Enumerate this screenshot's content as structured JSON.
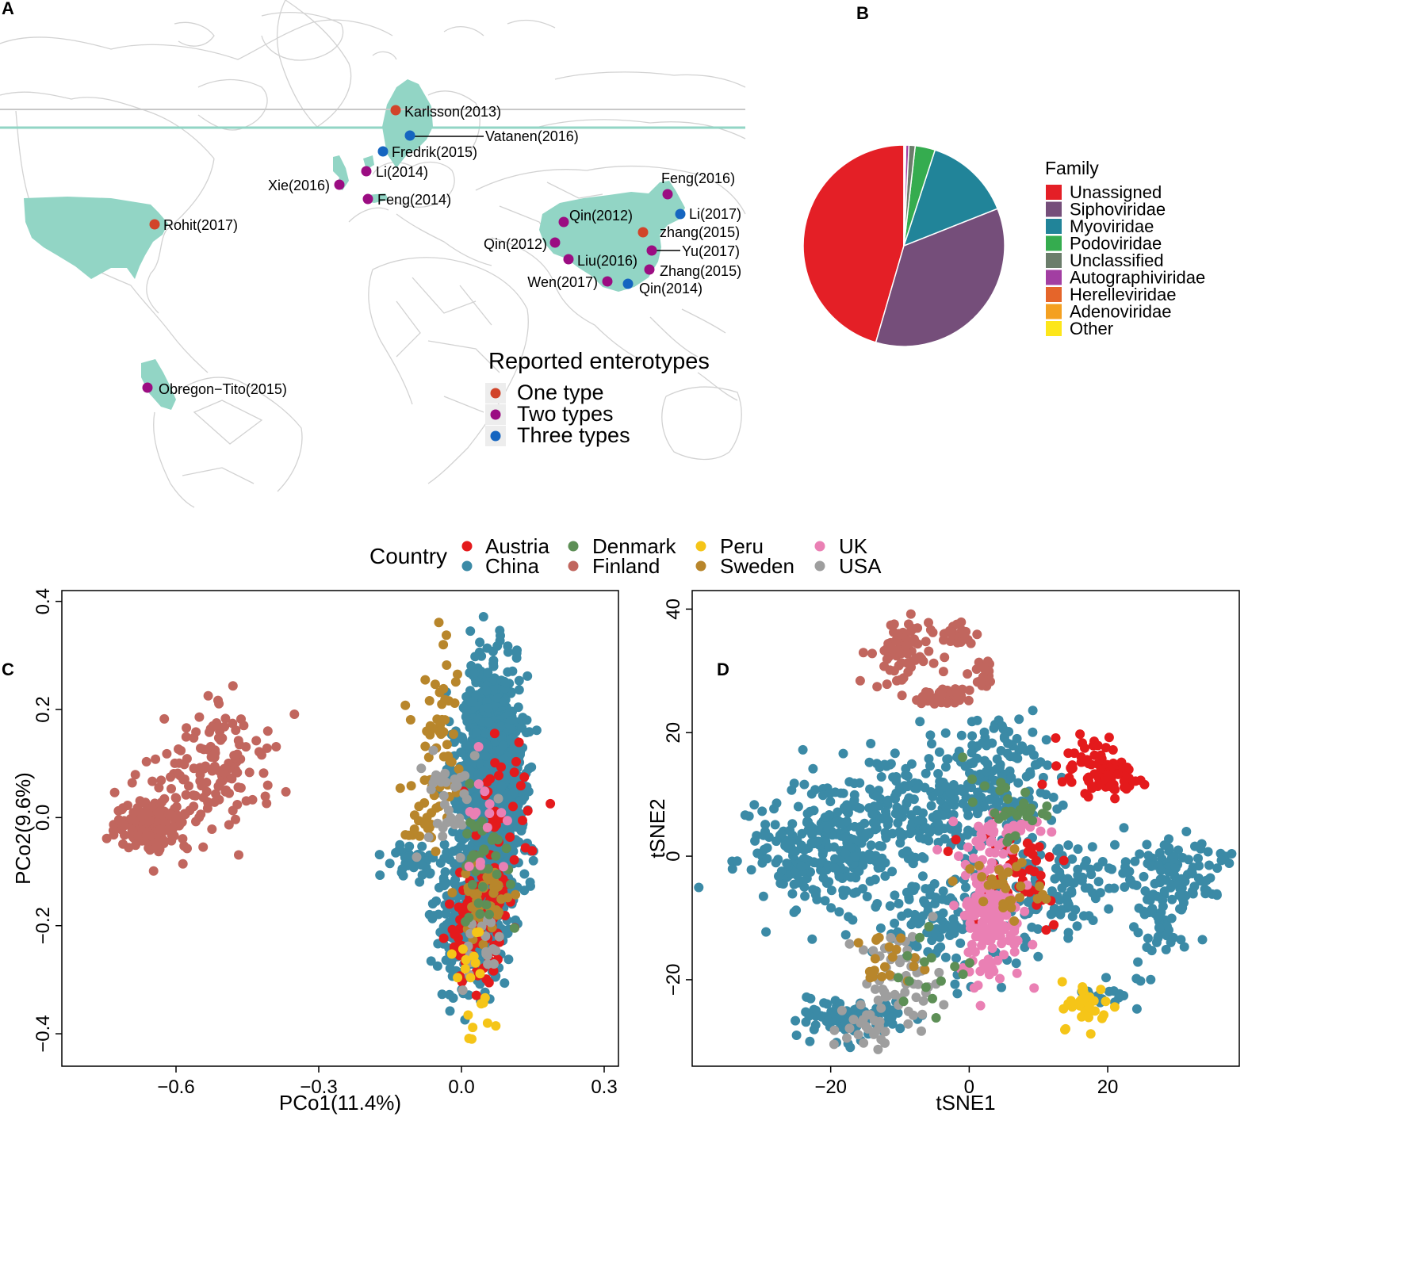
{
  "panels": {
    "a": "A",
    "b": "B",
    "c": "C",
    "d": "D"
  },
  "colors": {
    "one_type": "#d1442a",
    "two_types": "#9b0d82",
    "three_types": "#1565c0",
    "land": "#92d5c5",
    "map_line": "#cfcfcf",
    "austria": "#e41a1c",
    "china": "#3b8aa6",
    "denmark": "#5d8f56",
    "finland": "#c1665e",
    "peru": "#f5c518",
    "sweden": "#b8862b",
    "uk": "#ea80b4",
    "usa": "#9e9e9e"
  },
  "chart_data": [
    {
      "type": "map",
      "panel": "A",
      "legend_title": "Reported enterotypes",
      "legend": [
        {
          "label": "One type",
          "key": "one"
        },
        {
          "label": "Two types",
          "key": "two"
        },
        {
          "label": "Three types",
          "key": "three"
        }
      ],
      "studies": [
        {
          "label": "Karlsson(2013)",
          "type": "one"
        },
        {
          "label": "Vatanen(2016)",
          "type": "three"
        },
        {
          "label": "Fredrik(2015)",
          "type": "three"
        },
        {
          "label": "Li(2014)",
          "type": "two"
        },
        {
          "label": "Xie(2016)",
          "type": "two"
        },
        {
          "label": "Feng(2014)",
          "type": "two"
        },
        {
          "label": "Rohit(2017)",
          "type": "one"
        },
        {
          "label": "Obregon−Tito(2015)",
          "type": "two"
        },
        {
          "label": "Feng(2016)",
          "type": "two"
        },
        {
          "label": "Li(2017)",
          "type": "three"
        },
        {
          "label": "Qin(2012)",
          "type": "two"
        },
        {
          "label": "zhang(2015)",
          "type": "one"
        },
        {
          "label": "Qin(2012)",
          "type": "two"
        },
        {
          "label": "Yu(2017)",
          "type": "two"
        },
        {
          "label": "Liu(2016)",
          "type": "two"
        },
        {
          "label": "Zhang(2015)",
          "type": "two"
        },
        {
          "label": "Wen(2017)",
          "type": "two"
        },
        {
          "label": "Qin(2014)",
          "type": "three"
        }
      ]
    },
    {
      "type": "pie",
      "panel": "B",
      "legend_title": "Family",
      "slices": [
        {
          "label": "Unassigned",
          "value": 45.5,
          "color": "#e41f26"
        },
        {
          "label": "Siphoviridae",
          "value": 35.5,
          "color": "#754e7a"
        },
        {
          "label": "Myoviridae",
          "value": 14.0,
          "color": "#218499"
        },
        {
          "label": "Podoviridae",
          "value": 3.2,
          "color": "#35ac4f"
        },
        {
          "label": "Unclassified",
          "value": 1.0,
          "color": "#6b7d6b"
        },
        {
          "label": "Autographiviridae",
          "value": 0.5,
          "color": "#a23ea2"
        },
        {
          "label": "Herelleviridae",
          "value": 0.2,
          "color": "#e5652a"
        },
        {
          "label": "Adenoviridae",
          "value": 0.1,
          "color": "#f4a020"
        },
        {
          "label": "Other",
          "value": 0.0,
          "color": "#fde61a"
        }
      ]
    },
    {
      "type": "scatter",
      "panel": "C",
      "title": "",
      "xlabel": "PCo1(11.4%)",
      "ylabel": "PCo2(9.6%)",
      "xlim": [
        -0.84,
        0.33
      ],
      "ylim": [
        -0.46,
        0.42
      ],
      "xticks": [
        -0.6,
        -0.3,
        0.0,
        0.3
      ],
      "yticks": [
        -0.4,
        -0.2,
        0.0,
        0.2,
        0.4
      ],
      "xtick_labels": [
        "−0.6",
        "−0.3",
        "0.0",
        "0.3"
      ],
      "ytick_labels": [
        "−0.4",
        "−0.2",
        "0.0",
        "0.2",
        "0.4"
      ],
      "series": [
        {
          "name": "China",
          "color": "#3b8aa6",
          "clusters": [
            [
              0.06,
              0.06,
              0.045,
              0.14,
              1200
            ],
            [
              0.02,
              -0.2,
              0.05,
              0.07,
              300
            ],
            [
              -0.1,
              -0.08,
              0.04,
              0.02,
              40
            ]
          ]
        },
        {
          "name": "Finland",
          "color": "#c1665e",
          "clusters": [
            [
              -0.65,
              -0.01,
              0.05,
              0.035,
              160
            ],
            [
              -0.5,
              0.1,
              0.08,
              0.07,
              100
            ],
            [
              -0.55,
              0.04,
              0.06,
              0.06,
              40
            ]
          ]
        },
        {
          "name": "Austria",
          "color": "#e41a1c",
          "clusters": [
            [
              0.03,
              -0.2,
              0.04,
              0.07,
              110
            ],
            [
              0.08,
              0.0,
              0.04,
              0.1,
              40
            ]
          ]
        },
        {
          "name": "Sweden",
          "color": "#b8862b",
          "clusters": [
            [
              -0.04,
              0.15,
              0.035,
              0.1,
              45
            ],
            [
              -0.08,
              -0.02,
              0.03,
              0.06,
              25
            ],
            [
              0.05,
              -0.15,
              0.04,
              0.05,
              40
            ]
          ]
        },
        {
          "name": "USA",
          "color": "#9e9e9e",
          "clusters": [
            [
              -0.03,
              0.03,
              0.04,
              0.08,
              35
            ],
            [
              0.04,
              -0.25,
              0.03,
              0.05,
              20
            ]
          ]
        },
        {
          "name": "Denmark",
          "color": "#5d8f56",
          "clusters": [
            [
              0.04,
              -0.08,
              0.04,
              0.08,
              35
            ]
          ]
        },
        {
          "name": "Peru",
          "color": "#f5c518",
          "clusters": [
            [
              0.03,
              -0.32,
              0.03,
              0.06,
              20
            ]
          ]
        },
        {
          "name": "UK",
          "color": "#ea80b4",
          "clusters": [
            [
              0.05,
              0.0,
              0.04,
              0.08,
              15
            ]
          ]
        }
      ]
    },
    {
      "type": "scatter",
      "panel": "D",
      "title": "",
      "xlabel": "tSNE1",
      "ylabel": "tSNE2",
      "xlim": [
        -40,
        39
      ],
      "ylim": [
        -34,
        43
      ],
      "xticks": [
        -20,
        0,
        20
      ],
      "yticks": [
        -20,
        0,
        20,
        40
      ],
      "xtick_labels": [
        "−20",
        "0",
        "20"
      ],
      "ytick_labels": [
        "−20",
        "0",
        "20",
        "40"
      ],
      "series": [
        {
          "name": "China",
          "color": "#3b8aa6",
          "clusters": [
            [
              -22,
              0,
              7,
              6,
              240
            ],
            [
              -10,
              7,
              8,
              6,
              200
            ],
            [
              30,
              -3,
              4,
              4,
              110
            ],
            [
              -17,
              -26,
              5,
              2.5,
              90
            ],
            [
              3,
              13,
              7,
              6,
              190
            ],
            [
              -2,
              -10,
              8,
              6,
              150
            ],
            [
              27,
              -12,
              3,
              5,
              40
            ],
            [
              14,
              -4,
              6,
              5,
              100
            ],
            [
              20,
              -22,
              3,
              2,
              20
            ]
          ]
        },
        {
          "name": "Finland",
          "color": "#c1665e",
          "clusters": [
            [
              -10,
              33,
              3,
              4,
              70
            ],
            [
              -4,
              25.5,
              2,
              1,
              40
            ],
            [
              -2,
              36,
              2,
              1.5,
              25
            ],
            [
              2,
              29,
              1.6,
              2,
              20
            ]
          ]
        },
        {
          "name": "Austria",
          "color": "#e41a1c",
          "clusters": [
            [
              18,
              15,
              3,
              3,
              60
            ],
            [
              22,
              12,
              2.5,
              1.5,
              30
            ],
            [
              6,
              -2,
              6,
              7,
              50
            ]
          ]
        },
        {
          "name": "Peru",
          "color": "#f5c518",
          "clusters": [
            [
              17,
              -24,
              2.5,
              2.5,
              35
            ]
          ]
        },
        {
          "name": "UK",
          "color": "#ea80b4",
          "clusters": [
            [
              3,
              -10,
              3,
              7,
              140
            ],
            [
              4,
              4,
              4,
              3,
              40
            ]
          ]
        },
        {
          "name": "USA",
          "color": "#9e9e9e",
          "clusters": [
            [
              -10,
              -20,
              4,
              5,
              60
            ],
            [
              -15,
              -28,
              3,
              2,
              20
            ]
          ]
        },
        {
          "name": "Sweden",
          "color": "#b8862b",
          "clusters": [
            [
              5,
              -5,
              4,
              4,
              30
            ],
            [
              -12,
              -17,
              3,
              3,
              20
            ]
          ]
        },
        {
          "name": "Denmark",
          "color": "#5d8f56",
          "clusters": [
            [
              5,
              8,
              4,
              3,
              30
            ],
            [
              -4,
              -20,
              4,
              5,
              15
            ]
          ]
        }
      ]
    }
  ],
  "country_legend": {
    "title": "Country",
    "items": [
      {
        "label": "Austria",
        "key": "austria"
      },
      {
        "label": "China",
        "key": "china"
      },
      {
        "label": "Denmark",
        "key": "denmark"
      },
      {
        "label": "Finland",
        "key": "finland"
      },
      {
        "label": "Peru",
        "key": "peru"
      },
      {
        "label": "Sweden",
        "key": "sweden"
      },
      {
        "label": "UK",
        "key": "uk"
      },
      {
        "label": "USA",
        "key": "usa"
      }
    ]
  }
}
